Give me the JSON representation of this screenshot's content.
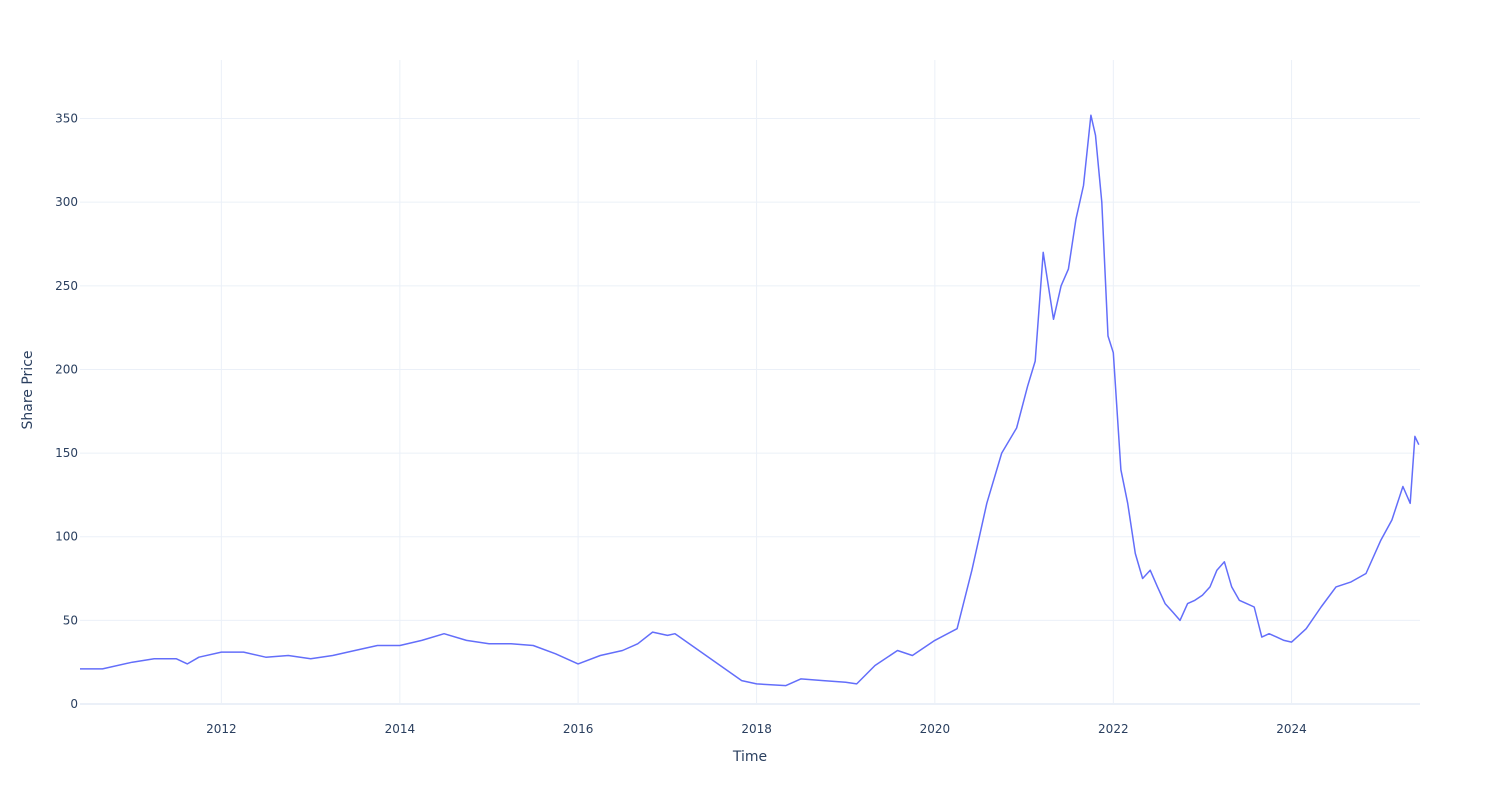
{
  "chart_data": {
    "type": "line",
    "title": "",
    "xlabel": "Time",
    "ylabel": "Share Price",
    "x_axis_type": "date",
    "xlim": [
      "2010-06-01",
      "2025-06-10"
    ],
    "ylim": [
      0,
      385
    ],
    "x_ticks": [
      "2012",
      "2014",
      "2016",
      "2018",
      "2020",
      "2022",
      "2024"
    ],
    "y_ticks": [
      "0",
      "50",
      "100",
      "150",
      "200",
      "250",
      "300",
      "350"
    ],
    "grid": true,
    "legend": "none",
    "line_color": "#636efa",
    "series": [
      {
        "x": [
          "2010-06-01",
          "2010-09-01",
          "2011-01-01",
          "2011-04-01",
          "2011-07-01",
          "2011-08-15",
          "2011-10-01",
          "2012-01-01",
          "2012-04-01",
          "2012-07-01",
          "2012-10-01",
          "2013-01-01",
          "2013-04-01",
          "2013-07-01",
          "2013-10-01",
          "2014-01-01",
          "2014-04-01",
          "2014-07-01",
          "2014-10-01",
          "2015-01-01",
          "2015-04-01",
          "2015-07-01",
          "2015-10-01",
          "2016-01-01",
          "2016-04-01",
          "2016-07-01",
          "2016-09-01",
          "2016-11-01",
          "2017-01-01",
          "2017-02-01",
          "2017-11-01",
          "2018-01-01",
          "2018-05-01",
          "2018-07-01",
          "2018-10-01",
          "2019-01-01",
          "2019-02-15",
          "2019-05-01",
          "2019-08-01",
          "2019-10-01",
          "2020-01-01",
          "2020-04-01",
          "2020-06-01",
          "2020-08-01",
          "2020-10-01",
          "2020-12-01",
          "2021-01-15",
          "2021-02-15",
          "2021-03-20",
          "2021-05-01",
          "2021-06-01",
          "2021-07-01",
          "2021-08-01",
          "2021-09-01",
          "2021-10-01",
          "2021-10-20",
          "2021-11-15",
          "2021-12-10",
          "2022-01-01",
          "2022-02-01",
          "2022-03-01",
          "2022-04-01",
          "2022-05-01",
          "2022-06-01",
          "2022-07-01",
          "2022-08-01",
          "2022-09-01",
          "2022-10-01",
          "2022-11-01",
          "2022-12-01",
          "2023-01-01",
          "2023-02-01",
          "2023-03-01",
          "2023-04-01",
          "2023-05-01",
          "2023-06-01",
          "2023-07-01",
          "2023-08-01",
          "2023-09-01",
          "2023-10-01",
          "2023-11-01",
          "2023-12-01",
          "2024-01-01",
          "2024-03-01",
          "2024-05-01",
          "2024-07-01",
          "2024-09-01",
          "2024-11-01",
          "2025-01-01",
          "2025-02-15",
          "2025-04-01",
          "2025-05-01",
          "2025-05-20",
          "2025-06-05"
        ],
        "y": [
          21,
          21,
          25,
          27,
          27,
          24,
          28,
          31,
          31,
          28,
          29,
          27,
          29,
          32,
          35,
          35,
          38,
          42,
          38,
          36,
          36,
          35,
          30,
          24,
          29,
          32,
          36,
          43,
          41,
          42,
          14,
          12,
          11,
          15,
          14,
          13,
          12,
          23,
          32,
          29,
          38,
          45,
          80,
          120,
          150,
          165,
          190,
          205,
          270,
          230,
          250,
          260,
          290,
          310,
          352,
          340,
          300,
          220,
          210,
          140,
          120,
          90,
          75,
          80,
          70,
          60,
          55,
          50,
          60,
          62,
          65,
          70,
          80,
          85,
          70,
          62,
          60,
          58,
          40,
          42,
          40,
          38,
          37,
          45,
          58,
          70,
          73,
          78,
          98,
          110,
          130,
          120,
          160,
          155
        ]
      }
    ]
  }
}
